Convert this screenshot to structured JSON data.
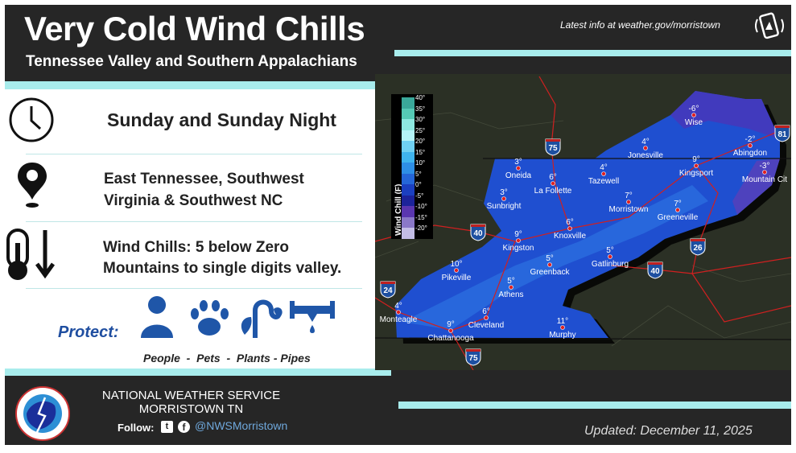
{
  "header": {
    "title": "Very Cold Wind Chills",
    "subtitle": "Tennessee Valley and Southern Appalachians",
    "latest_info": "Latest info at weather.gov/morristown",
    "icon": "mobile-alert-icon"
  },
  "info": {
    "timing": "Sunday and Sunday Night",
    "location_line1": "East Tennessee, Southwest",
    "location_line2": "Virginia & Southwest NC",
    "impact_line1": "Wind Chills: 5 below Zero",
    "impact_line2": "Mountains to single digits valley.",
    "protect_label": "Protect:",
    "protect_items": "People  -  Pets  -  Plants - Pipes"
  },
  "legend": {
    "title": "Wind Chill (F)",
    "ticks": [
      "40°",
      "35°",
      "30°",
      "25°",
      "20°",
      "15°",
      "10°",
      "5°",
      "0°",
      "-5°",
      "-10°",
      "-15°",
      "-20°"
    ],
    "colors": [
      "#3aa89a",
      "#55c9b5",
      "#8ee8e0",
      "#b5f3f7",
      "#6fd0f2",
      "#3fb4ee",
      "#2e8fe6",
      "#2566d8",
      "#1b3fc0",
      "#1c239a",
      "#5a36b0",
      "#8a78c8",
      "#c3bde6"
    ]
  },
  "cities": [
    {
      "name": "Wise",
      "temp": "-6°"
    },
    {
      "name": "Jonesville",
      "temp": "4°"
    },
    {
      "name": "Abingdon",
      "temp": "-2°"
    },
    {
      "name": "Kingsport",
      "temp": "9°"
    },
    {
      "name": "Mountain Cit",
      "temp": "-3°"
    },
    {
      "name": "Oneida",
      "temp": "3°"
    },
    {
      "name": "La Follette",
      "temp": "6°"
    },
    {
      "name": "Tazewell",
      "temp": "4°"
    },
    {
      "name": "Sunbright",
      "temp": "3°"
    },
    {
      "name": "Morristown",
      "temp": "7°"
    },
    {
      "name": "Greeneville",
      "temp": "7°"
    },
    {
      "name": "Knoxville",
      "temp": "6°"
    },
    {
      "name": "Kingston",
      "temp": "9°"
    },
    {
      "name": "Gatlinburg",
      "temp": "5°"
    },
    {
      "name": "Greenback",
      "temp": "5°"
    },
    {
      "name": "Pikeville",
      "temp": "10°"
    },
    {
      "name": "Athens",
      "temp": "5°"
    },
    {
      "name": "Monteagle",
      "temp": "4°"
    },
    {
      "name": "Cleveland",
      "temp": "6°"
    },
    {
      "name": "Chattanooga",
      "temp": "9°"
    },
    {
      "name": "Murphy",
      "temp": "11°"
    }
  ],
  "interstates": [
    "75",
    "81",
    "40",
    "26",
    "40",
    "24",
    "75"
  ],
  "footer": {
    "org_line1": "NATIONAL WEATHER SERVICE",
    "org_line2": "MORRISTOWN TN",
    "follow": "Follow:",
    "handle": "@NWSMorristown",
    "updated": "Updated: December 11, 2025",
    "logo_text": "NATIONAL WEATHER SERVICE"
  }
}
